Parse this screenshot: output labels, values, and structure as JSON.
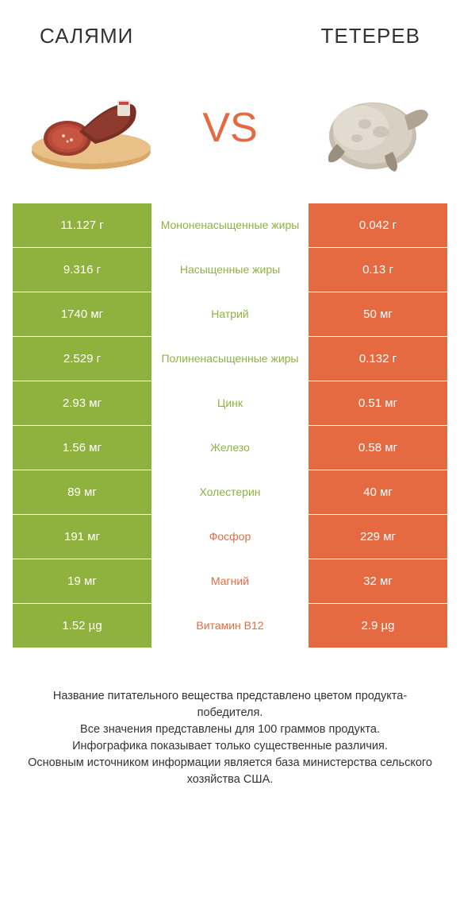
{
  "colors": {
    "left": "#8fb23f",
    "right": "#e56a42",
    "background": "#ffffff",
    "text": "#333333",
    "row_text": "#ffffff"
  },
  "typography": {
    "title_fontsize": 26,
    "vs_fontsize": 52,
    "value_fontsize": 15,
    "label_fontsize": 14,
    "footer_fontsize": 14.5
  },
  "header": {
    "left_title": "САЛЯМИ",
    "right_title": "ТЕТЕРЕВ",
    "vs": "VS"
  },
  "table": {
    "type": "comparison-table",
    "rows": [
      {
        "label": "Мононенасыщенные жиры",
        "left": "11.127 г",
        "right": "0.042 г",
        "winner": "left"
      },
      {
        "label": "Насыщенные жиры",
        "left": "9.316 г",
        "right": "0.13 г",
        "winner": "left"
      },
      {
        "label": "Натрий",
        "left": "1740 мг",
        "right": "50 мг",
        "winner": "left"
      },
      {
        "label": "Полиненасыщенные жиры",
        "left": "2.529 г",
        "right": "0.132 г",
        "winner": "left"
      },
      {
        "label": "Цинк",
        "left": "2.93 мг",
        "right": "0.51 мг",
        "winner": "left"
      },
      {
        "label": "Железо",
        "left": "1.56 мг",
        "right": "0.58 мг",
        "winner": "left"
      },
      {
        "label": "Холестерин",
        "left": "89 мг",
        "right": "40 мг",
        "winner": "left"
      },
      {
        "label": "Фосфор",
        "left": "191 мг",
        "right": "229 мг",
        "winner": "right"
      },
      {
        "label": "Магний",
        "left": "19 мг",
        "right": "32 мг",
        "winner": "right"
      },
      {
        "label": "Витамин B12",
        "left": "1.52 µg",
        "right": "2.9 µg",
        "winner": "right"
      }
    ]
  },
  "footer": {
    "line1": "Название питательного вещества представлено цветом продукта-победителя.",
    "line2": "Все значения представлены для 100 граммов продукта.",
    "line3": "Инфографика показывает только существенные различия.",
    "line4": "Основным источником информации является база министерства сельского хозяйства США."
  }
}
